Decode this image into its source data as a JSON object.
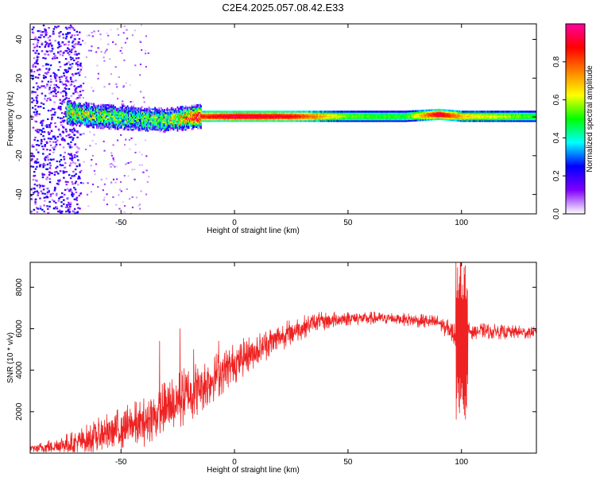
{
  "title": "C2E4.2025.057.08.42.E33",
  "chart_data": [
    {
      "type": "heatmap",
      "name": "spectrogram",
      "xlabel": "Height of straight line (km)",
      "ylabel": "Frequency (Hz)",
      "xlim": [
        -90,
        133
      ],
      "ylim": [
        -50,
        48
      ],
      "xticks": [
        -50,
        0,
        50,
        100
      ],
      "yticks": [
        -40,
        -20,
        0,
        20,
        40
      ],
      "ridge": [
        {
          "x": -75,
          "y": 2,
          "amp": 0.55
        },
        {
          "x": -60,
          "y": 0,
          "amp": 0.5
        },
        {
          "x": -45,
          "y": -1,
          "amp": 0.45
        },
        {
          "x": -30,
          "y": -2,
          "amp": 0.5
        },
        {
          "x": -15,
          "y": 0,
          "amp": 0.85
        },
        {
          "x": 0,
          "y": 0,
          "amp": 0.95
        },
        {
          "x": 25,
          "y": 0,
          "amp": 0.9
        },
        {
          "x": 50,
          "y": 0,
          "amp": 0.55
        },
        {
          "x": 75,
          "y": 0,
          "amp": 0.5
        },
        {
          "x": 90,
          "y": 1,
          "amp": 0.95
        },
        {
          "x": 100,
          "y": 0,
          "amp": 0.7
        },
        {
          "x": 133,
          "y": 0,
          "amp": 0.5
        }
      ],
      "colorbar": {
        "label": "Normalized spectral amplitude",
        "range": [
          0,
          1
        ],
        "ticks": [
          "0.0",
          "0.2",
          "0.4",
          "0.6",
          "0.8"
        ],
        "colors": [
          "#ffffff",
          "#8000ff",
          "#0000ff",
          "#00ffff",
          "#00ff00",
          "#ffff00",
          "#ff8000",
          "#ff0000",
          "#ff00a0"
        ]
      }
    },
    {
      "type": "line",
      "name": "snr",
      "xlabel": "Height of straight line (km)",
      "ylabel": "SNR (10 * v/v)",
      "xlim": [
        -90,
        133
      ],
      "ylim": [
        0,
        9200
      ],
      "xticks": [
        -50,
        0,
        50,
        100
      ],
      "yticks": [
        2000,
        4000,
        6000,
        8000
      ],
      "color": "#ee2222",
      "envelope": [
        {
          "x": -90,
          "y": 200,
          "noise": 150
        },
        {
          "x": -70,
          "y": 500,
          "noise": 600
        },
        {
          "x": -55,
          "y": 1000,
          "noise": 1000
        },
        {
          "x": -40,
          "y": 1500,
          "noise": 1200
        },
        {
          "x": -25,
          "y": 2500,
          "noise": 1500
        },
        {
          "x": -10,
          "y": 3600,
          "noise": 1200
        },
        {
          "x": 5,
          "y": 4700,
          "noise": 900
        },
        {
          "x": 20,
          "y": 5600,
          "noise": 700
        },
        {
          "x": 35,
          "y": 6300,
          "noise": 500
        },
        {
          "x": 50,
          "y": 6500,
          "noise": 350
        },
        {
          "x": 70,
          "y": 6500,
          "noise": 300
        },
        {
          "x": 90,
          "y": 6300,
          "noise": 350
        },
        {
          "x": 97,
          "y": 5700,
          "noise": 600
        },
        {
          "x": 103,
          "y": 5900,
          "noise": 400
        },
        {
          "x": 133,
          "y": 5800,
          "noise": 300
        }
      ],
      "spikes": [
        {
          "x": -33,
          "y": 5400
        },
        {
          "x": -24,
          "y": 6000
        },
        {
          "x": -18,
          "y": 5000
        },
        {
          "x": -7,
          "y": 5400
        },
        {
          "x": 99.5,
          "y": 9100
        },
        {
          "x": 101,
          "y": 1600
        },
        {
          "x": 102,
          "y": 9000
        }
      ]
    }
  ]
}
